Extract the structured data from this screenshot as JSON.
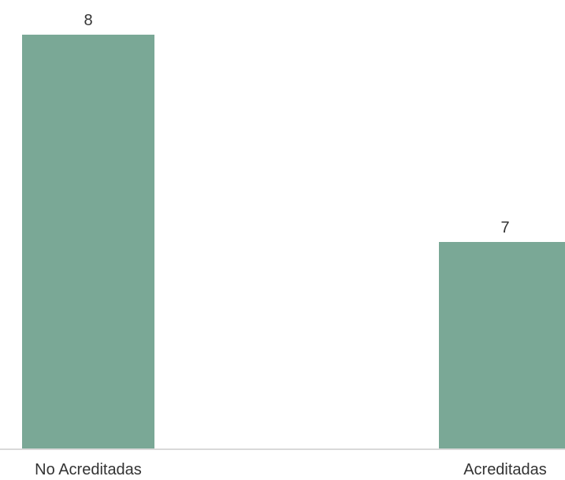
{
  "chart_data": {
    "type": "bar",
    "categories": [
      "No Acreditadas",
      "Acreditadas"
    ],
    "values": [
      8,
      7
    ],
    "data_labels": [
      "8",
      "7"
    ],
    "title": "",
    "xlabel": "",
    "ylabel": "",
    "ylim": [
      6,
      8
    ],
    "grid": false,
    "legend": "none",
    "colors": {
      "bar": "#7aa896",
      "axis": "#d9d9d9",
      "text": "#333333"
    }
  }
}
